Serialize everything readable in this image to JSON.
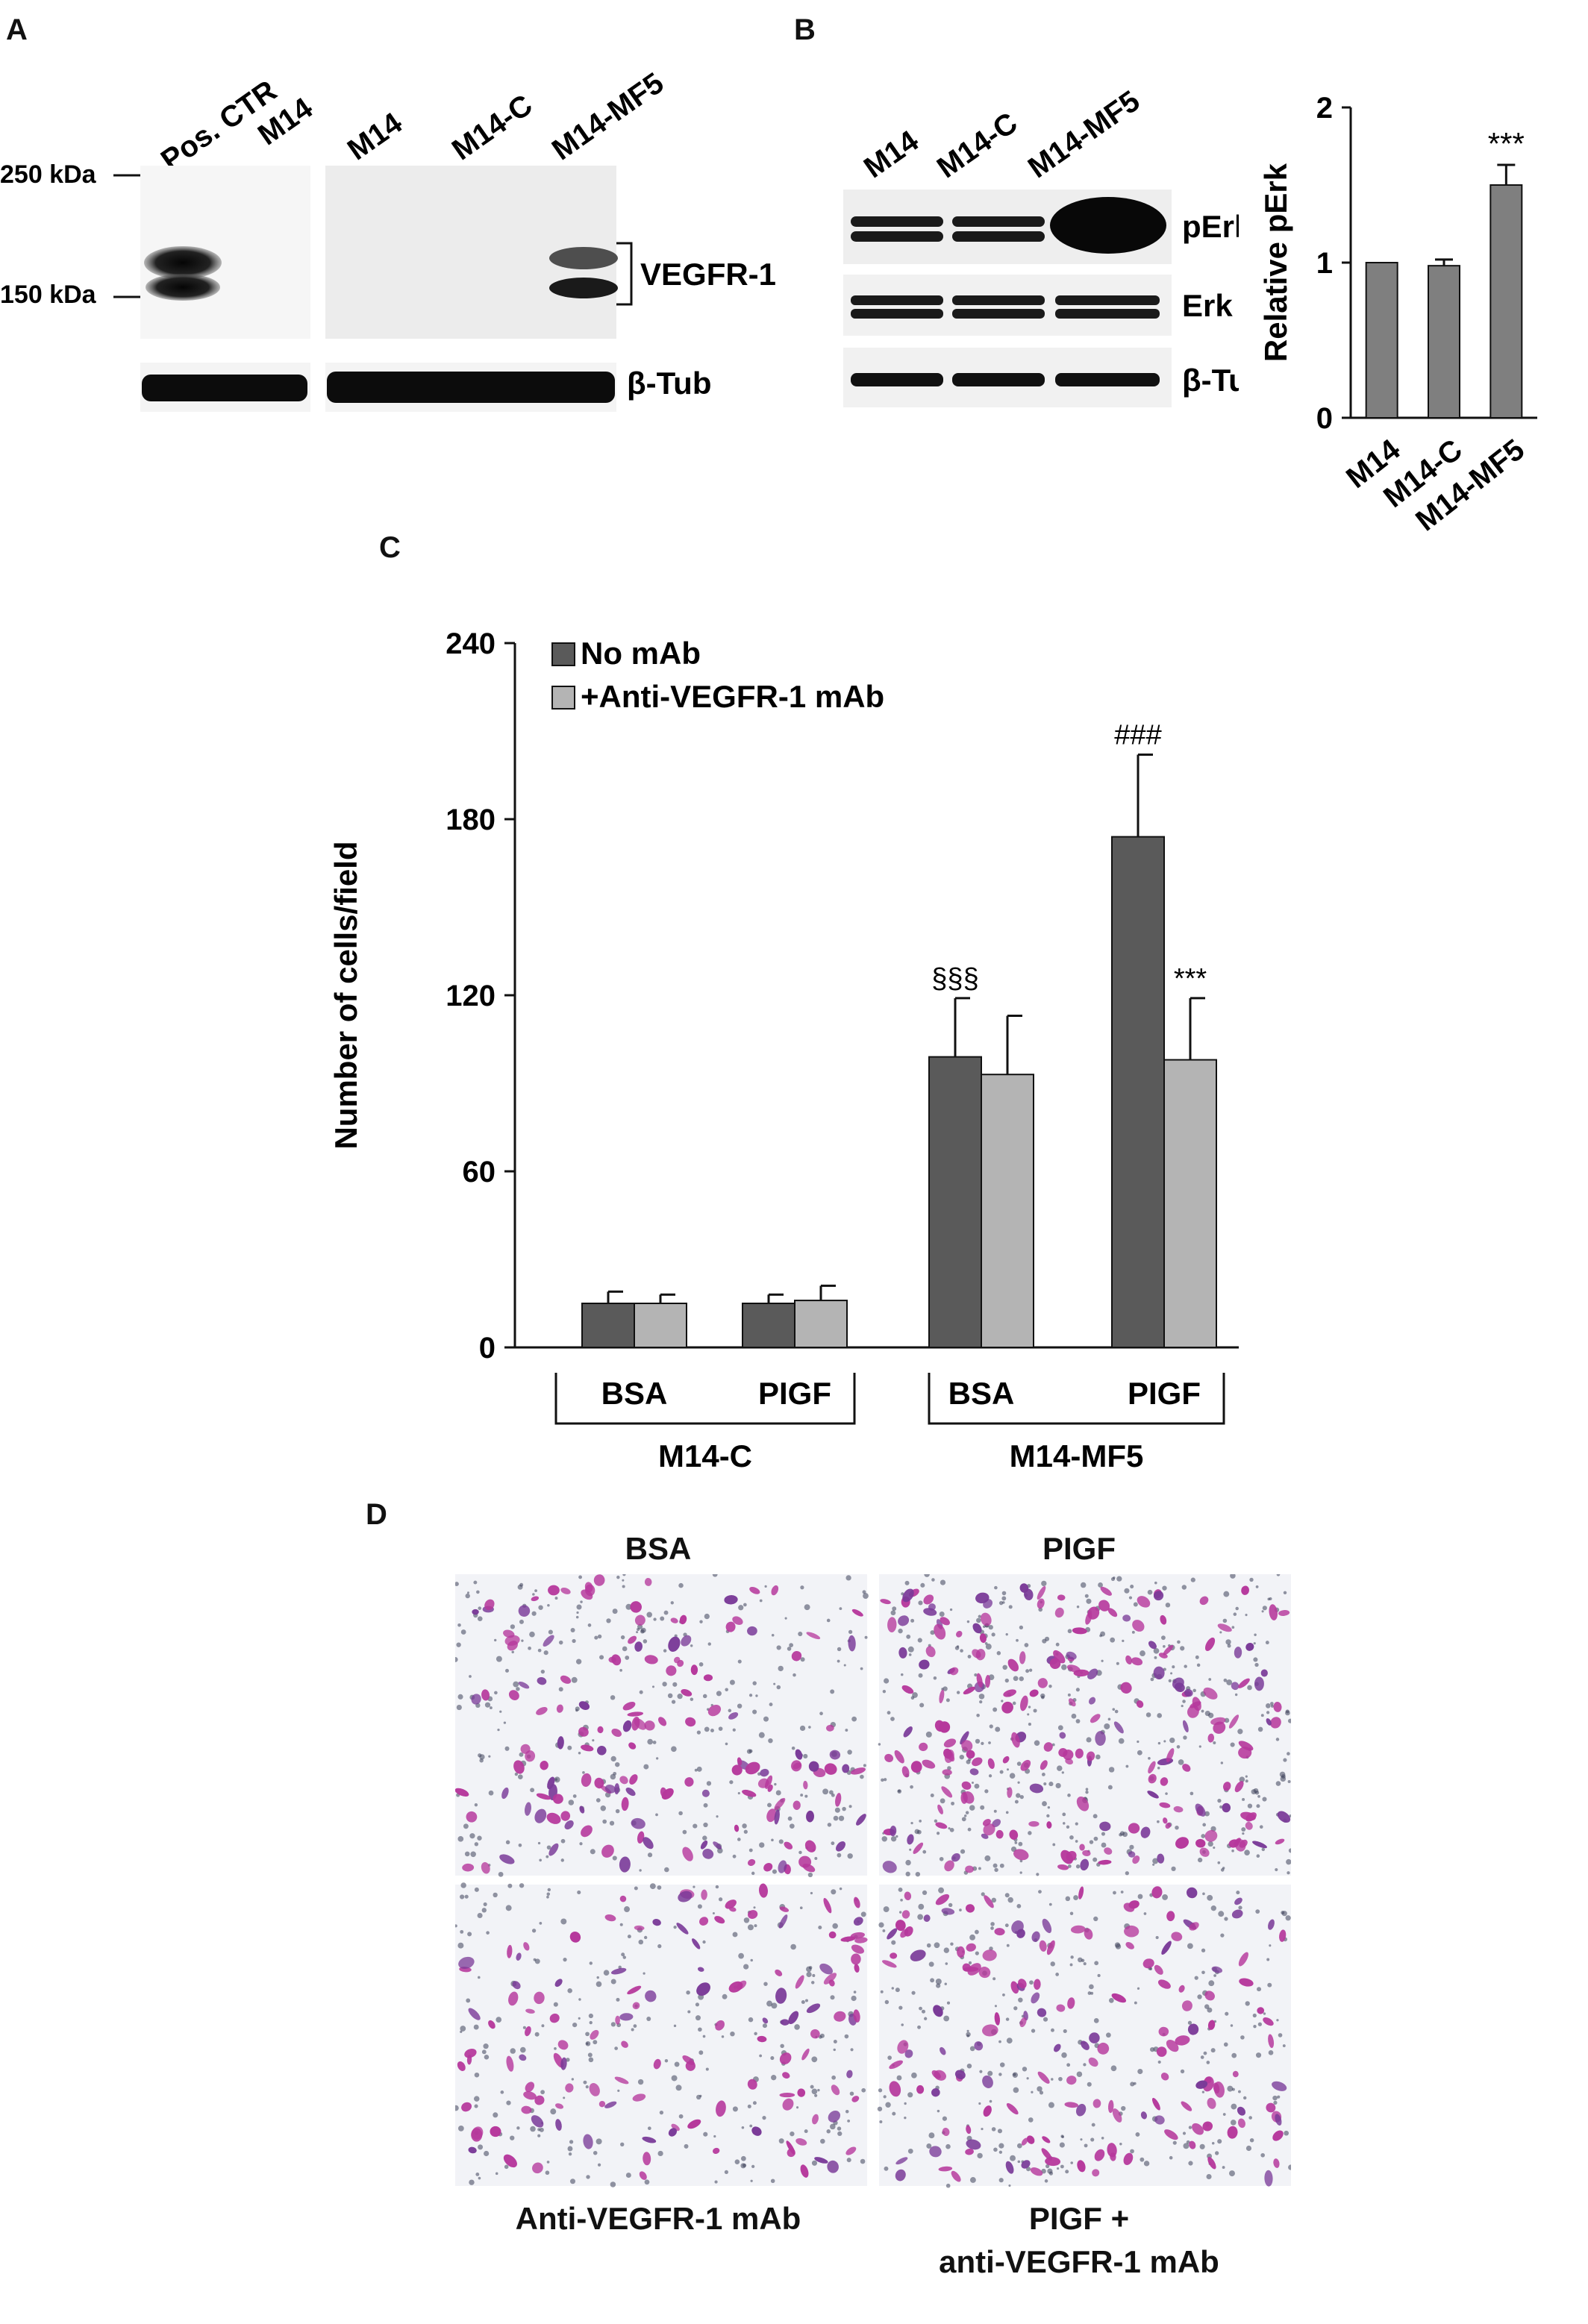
{
  "panel_labels": {
    "a": "A",
    "b": "B",
    "c": "C",
    "d": "D"
  },
  "panel_a": {
    "lanes": [
      "Pos. CTR",
      "M14",
      "M14",
      "M14-C",
      "M14-MF5"
    ],
    "markers": [
      "250 kDa",
      "150 kDa"
    ],
    "bands": [
      "VEGFR-1",
      "β-Tub"
    ]
  },
  "panel_b_blot": {
    "lanes": [
      "M14",
      "M14-C",
      "M14-MF5"
    ],
    "bands": [
      "pErk",
      "Erk",
      "β-Tub"
    ]
  },
  "panel_c_annotations": {
    "sss": "§§§",
    "hhh": "###",
    "star": "***"
  },
  "panel_c_groups": [
    "M14-C",
    "M14-MF5"
  ],
  "panel_d": {
    "top_labels": [
      "BSA",
      "PIGF"
    ],
    "bottom_labels": [
      "Anti-VEGFR-1 mAb",
      "PIGF +",
      "anti-VEGFR-1 mAb"
    ]
  },
  "chart_data": [
    {
      "type": "bar",
      "categories": [
        "M14",
        "M14-C",
        "M14-MF5"
      ],
      "values": [
        1.0,
        0.98,
        1.5
      ],
      "errors": [
        0.0,
        0.04,
        0.13
      ],
      "annotations": [
        "",
        "",
        "***"
      ],
      "ylabel": "Relative pErk",
      "ylim": [
        0,
        2
      ],
      "yticks": [
        "0",
        "1",
        "2"
      ],
      "color": "#7f7f7f"
    },
    {
      "type": "bar",
      "categories": [
        "BSA",
        "PIGF",
        "BSA",
        "PIGF"
      ],
      "groups": [
        "M14-C",
        "M14-MF5"
      ],
      "series": [
        {
          "name": "No mAb",
          "values": [
            15,
            15,
            99,
            174
          ],
          "errors": [
            4,
            3,
            20,
            28
          ],
          "color": "#5a5a5a"
        },
        {
          "name": "+Anti-VEGFR-1 mAb",
          "values": [
            15,
            16,
            93,
            98
          ],
          "errors": [
            3,
            5,
            20,
            21
          ],
          "color": "#b4b4b4"
        }
      ],
      "annotations": {
        "No mAb": [
          "",
          "",
          "§§§",
          "###"
        ],
        "+Anti-VEGFR-1 mAb": [
          "",
          "",
          "",
          "***"
        ]
      },
      "ylabel": "Number of cells/field",
      "ylim": [
        0,
        240
      ],
      "yticks": [
        "0",
        "60",
        "120",
        "180",
        "240"
      ],
      "legend": "top-left"
    }
  ]
}
